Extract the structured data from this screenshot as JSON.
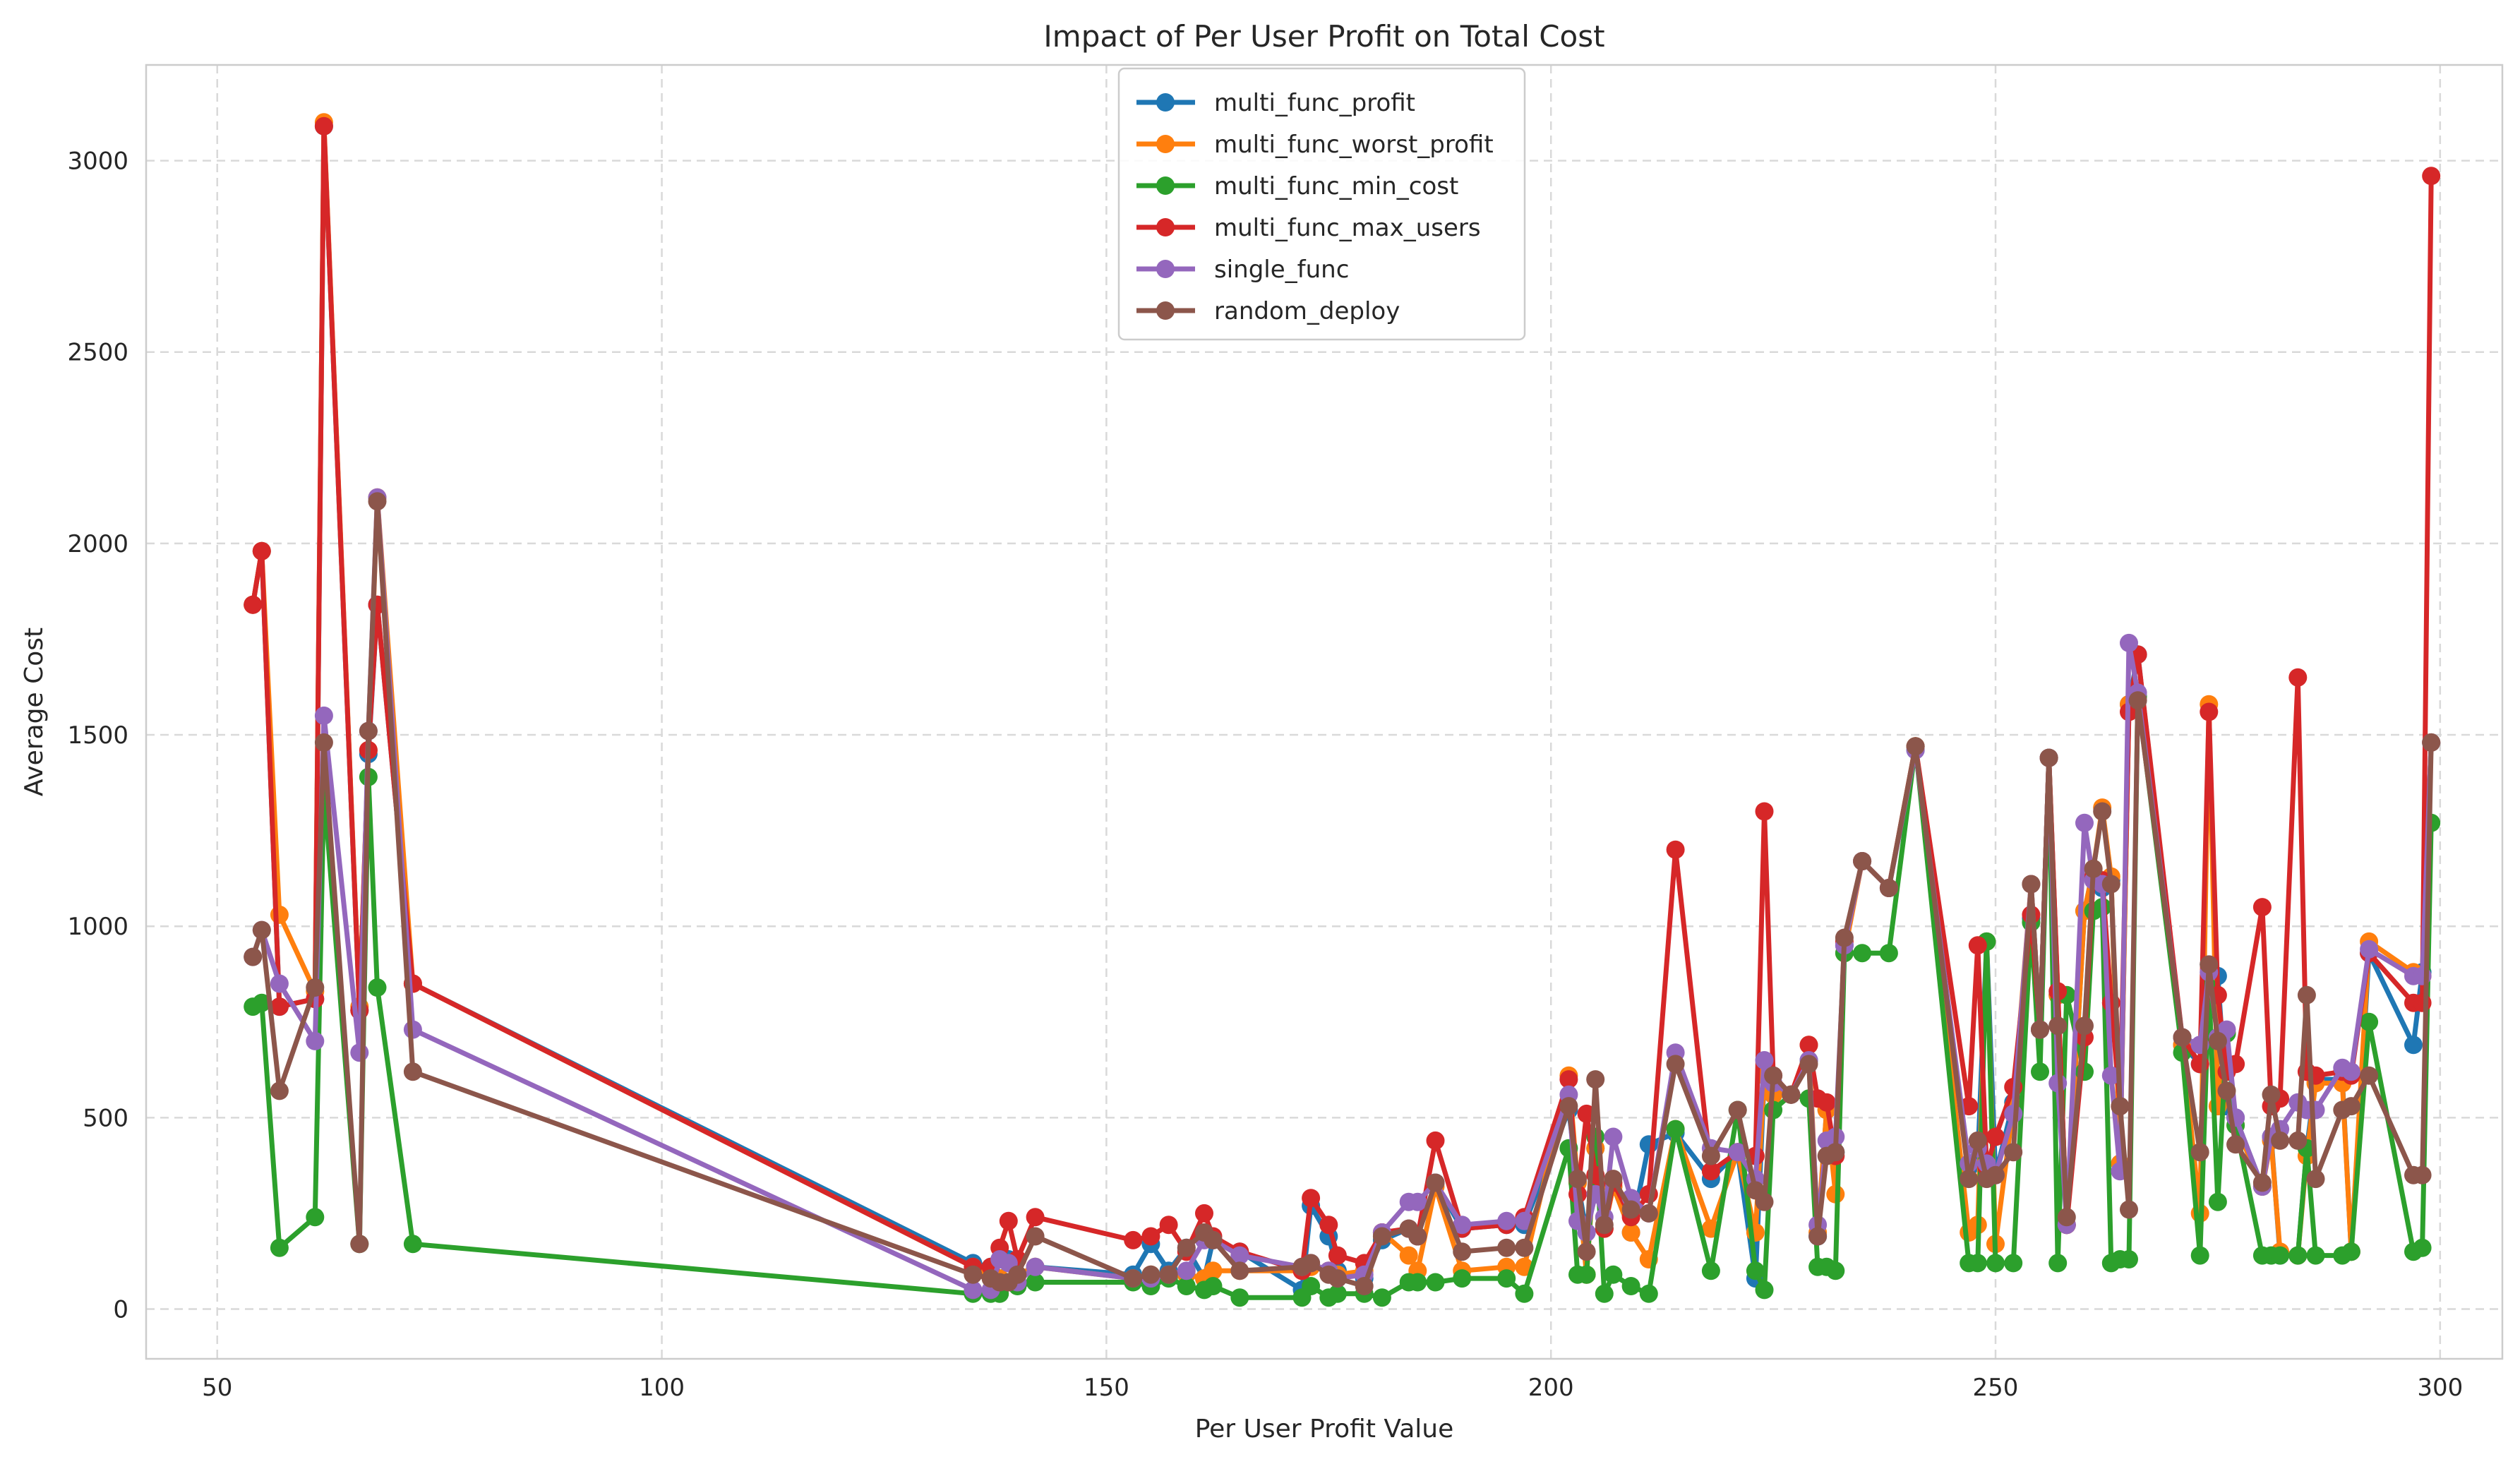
{
  "chart_data": {
    "type": "line",
    "title": "Impact of Per User Profit on Total Cost",
    "xlabel": "Per User Profit Value",
    "ylabel": "Average Cost",
    "xlim": [
      42,
      307
    ],
    "ylim": [
      -130,
      3250
    ],
    "xticks": [
      50,
      100,
      150,
      200,
      250,
      300
    ],
    "yticks": [
      0,
      500,
      1000,
      1500,
      2000,
      2500,
      3000
    ],
    "grid": true,
    "legend_position": "top-center",
    "x": [
      54,
      55,
      57,
      61,
      62,
      66,
      67,
      68,
      72,
      135,
      137,
      138,
      139,
      140,
      142,
      153,
      155,
      157,
      159,
      161,
      162,
      165,
      172,
      173,
      175,
      176,
      179,
      181,
      184,
      185,
      187,
      190,
      195,
      197,
      202,
      203,
      204,
      205,
      206,
      207,
      209,
      211,
      214,
      218,
      221,
      223,
      224,
      225,
      227,
      229,
      230,
      231,
      232,
      233,
      235,
      238,
      241,
      247,
      248,
      249,
      250,
      252,
      254,
      255,
      256,
      257,
      258,
      260,
      261,
      262,
      263,
      264,
      265,
      266,
      271,
      273,
      274,
      275,
      276,
      277,
      280,
      281,
      282,
      284,
      285,
      286,
      289,
      290,
      292,
      297,
      298,
      299
    ],
    "series": [
      {
        "name": "multi_func_profit",
        "color": "#1f77b4",
        "values": [
          1840,
          1980,
          790,
          810,
          3090,
          780,
          1450,
          1840,
          850,
          120,
          110,
          80,
          130,
          90,
          110,
          90,
          170,
          100,
          160,
          80,
          180,
          150,
          50,
          270,
          190,
          100,
          80,
          180,
          210,
          190,
          330,
          210,
          220,
          220,
          520,
          330,
          200,
          420,
          210,
          320,
          200,
          430,
          460,
          340,
          410,
          80,
          610,
          560,
          560,
          650,
          190,
          520,
          410,
          950,
          1170,
          1100,
          1460,
          370,
          390,
          960,
          350,
          540,
          1020,
          730,
          1440,
          820,
          220,
          1040,
          1150,
          1100,
          1120,
          380,
          1580,
          1710,
          690,
          640,
          900,
          870,
          530,
          500,
          320,
          450,
          140,
          140,
          420,
          600,
          600,
          150,
          930,
          690,
          880,
          1480
        ]
      },
      {
        "name": "multi_func_worst_profit",
        "color": "#ff7f0e",
        "values": [
          1840,
          1980,
          1030,
          830,
          3100,
          790,
          1460,
          2120,
          850,
          110,
          90,
          80,
          120,
          90,
          110,
          80,
          90,
          90,
          90,
          80,
          100,
          100,
          100,
          110,
          100,
          90,
          100,
          200,
          140,
          100,
          320,
          100,
          110,
          110,
          610,
          330,
          90,
          420,
          210,
          320,
          200,
          130,
          470,
          210,
          410,
          200,
          610,
          560,
          560,
          690,
          200,
          520,
          300,
          930,
          1170,
          1100,
          1470,
          200,
          220,
          960,
          170,
          530,
          1110,
          730,
          1440,
          820,
          220,
          1040,
          1150,
          1310,
          1130,
          380,
          1580,
          1600,
          690,
          250,
          1580,
          530,
          720,
          480,
          320,
          440,
          150,
          140,
          400,
          590,
          590,
          150,
          960,
          880,
          870,
          1480
        ]
      },
      {
        "name": "multi_func_min_cost",
        "color": "#2ca02c",
        "values": [
          790,
          800,
          160,
          240,
          1360,
          170,
          1390,
          840,
          170,
          40,
          40,
          40,
          70,
          60,
          70,
          70,
          60,
          80,
          60,
          50,
          60,
          30,
          30,
          60,
          30,
          40,
          40,
          30,
          70,
          70,
          70,
          80,
          80,
          40,
          420,
          90,
          90,
          450,
          40,
          90,
          60,
          40,
          470,
          100,
          520,
          100,
          50,
          520,
          560,
          550,
          110,
          110,
          100,
          930,
          930,
          930,
          1470,
          120,
          120,
          960,
          120,
          120,
          1010,
          620,
          1440,
          120,
          820,
          620,
          1040,
          1050,
          120,
          130,
          130,
          1600,
          670,
          140,
          840,
          280,
          720,
          480,
          140,
          140,
          140,
          140,
          420,
          140,
          140,
          150,
          750,
          150,
          160,
          1270
        ]
      },
      {
        "name": "multi_func_max_users",
        "color": "#d62728",
        "values": [
          1840,
          1980,
          790,
          810,
          3090,
          780,
          1460,
          1840,
          850,
          110,
          110,
          160,
          230,
          130,
          240,
          180,
          190,
          220,
          150,
          250,
          190,
          150,
          100,
          290,
          220,
          140,
          120,
          200,
          210,
          190,
          440,
          210,
          220,
          240,
          600,
          300,
          510,
          350,
          210,
          330,
          240,
          300,
          1200,
          360,
          410,
          400,
          1300,
          610,
          560,
          690,
          550,
          540,
          400,
          960,
          1170,
          1100,
          1470,
          530,
          950,
          370,
          450,
          580,
          1030,
          730,
          1440,
          830,
          220,
          710,
          1130,
          1120,
          800,
          530,
          1560,
          1710,
          710,
          640,
          1560,
          820,
          620,
          640,
          1050,
          530,
          550,
          1650,
          620,
          610,
          620,
          610,
          930,
          800,
          800,
          2960
        ]
      },
      {
        "name": "single_func",
        "color": "#9467bd",
        "values": [
          920,
          990,
          850,
          700,
          1550,
          670,
          1510,
          2120,
          730,
          50,
          50,
          130,
          120,
          70,
          110,
          80,
          80,
          90,
          100,
          180,
          180,
          140,
          110,
          120,
          100,
          80,
          90,
          200,
          280,
          280,
          330,
          220,
          230,
          230,
          560,
          230,
          200,
          300,
          240,
          450,
          290,
          250,
          670,
          420,
          410,
          340,
          650,
          590,
          560,
          650,
          220,
          440,
          450,
          950,
          1170,
          1100,
          1460,
          380,
          420,
          380,
          350,
          510,
          1110,
          730,
          1440,
          590,
          220,
          1270,
          1120,
          1110,
          610,
          360,
          1740,
          1610,
          710,
          690,
          880,
          710,
          730,
          500,
          320,
          450,
          470,
          540,
          520,
          520,
          630,
          620,
          940,
          870,
          870,
          1480
        ]
      },
      {
        "name": "random_deploy",
        "color": "#8c564b",
        "values": [
          920,
          990,
          570,
          840,
          1480,
          170,
          1510,
          2110,
          620,
          90,
          80,
          70,
          70,
          90,
          190,
          80,
          90,
          90,
          160,
          200,
          180,
          100,
          110,
          120,
          90,
          80,
          60,
          190,
          210,
          190,
          330,
          150,
          160,
          160,
          530,
          340,
          150,
          600,
          220,
          340,
          260,
          250,
          640,
          400,
          520,
          310,
          280,
          610,
          560,
          640,
          190,
          400,
          410,
          970,
          1170,
          1100,
          1470,
          340,
          440,
          340,
          350,
          410,
          1110,
          730,
          1440,
          740,
          240,
          740,
          1150,
          1300,
          1110,
          530,
          260,
          1590,
          710,
          410,
          900,
          700,
          570,
          430,
          330,
          560,
          440,
          440,
          820,
          340,
          520,
          530,
          610,
          350,
          350,
          1480
        ]
      }
    ]
  }
}
